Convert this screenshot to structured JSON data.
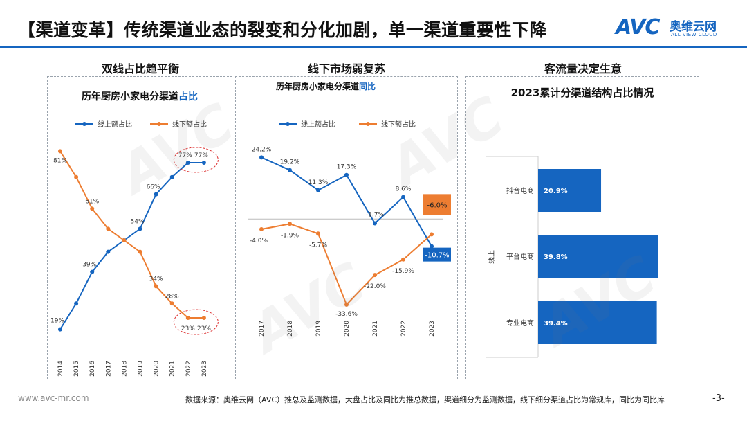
{
  "title": "【渠道变革】传统渠道业态的裂变和分化加剧，单一渠道重要性下降",
  "logo": {
    "avc": "AVC",
    "cn": "奥维云网",
    "en": "ALL VIEW CLOUD"
  },
  "sections": [
    "双线占比趋平衡",
    "线下市场弱复苏",
    "客流量决定生意"
  ],
  "colors": {
    "online": "#1565c0",
    "offline": "#ed7d31",
    "accent": "#1565c0"
  },
  "chart_data": [
    {
      "type": "line",
      "title_main": "历年厨房小家电分渠道",
      "title_accent": "占比",
      "x": [
        "2014",
        "2015",
        "2016",
        "2017",
        "2018",
        "2019",
        "2020",
        "2021",
        "2022",
        "2023"
      ],
      "series": [
        {
          "name": "线上额占比",
          "values": [
            19,
            28,
            39,
            46,
            50,
            54,
            66,
            72,
            77,
            77
          ],
          "labels": {
            "0": "19%",
            "2": "39%",
            "5": "54%",
            "6": "66%",
            "8": "77%",
            "9": "77%"
          }
        },
        {
          "name": "线下额占比",
          "values": [
            81,
            72,
            61,
            54,
            50,
            46,
            34,
            28,
            23,
            23
          ],
          "labels": {
            "0": "81%",
            "2": "61%",
            "6": "34%",
            "7": "28%",
            "8": "23%",
            "9": "23%"
          }
        }
      ],
      "ylim": [
        10,
        90
      ]
    },
    {
      "type": "line",
      "title_main": "历年厨房小家电分渠道",
      "title_accent": "同比",
      "x": [
        "2017",
        "2018",
        "2019",
        "2020",
        "2021",
        "2022",
        "2023"
      ],
      "series": [
        {
          "name": "线上额占比",
          "values": [
            24.2,
            19.2,
            11.3,
            17.3,
            -1.7,
            8.6,
            -10.7
          ],
          "labels": [
            "24.2%",
            "19.2%",
            "11.3%",
            "17.3%",
            "-1.7%",
            "8.6%",
            "-10.7%"
          ]
        },
        {
          "name": "线下额占比",
          "values": [
            -4.0,
            -1.9,
            -5.7,
            -33.6,
            -22.0,
            -15.9,
            -6.0
          ],
          "labels": [
            "-4.0%",
            "-1.9%",
            "-5.7%",
            "-33.6%",
            "-22.0%",
            "-15.9%",
            "-6.0%"
          ]
        }
      ],
      "ylim": [
        -38,
        30
      ]
    },
    {
      "type": "bar",
      "title": "2023累计分渠道结构占比情况",
      "group": "线上",
      "categories": [
        "抖音电商",
        "平台电商",
        "专业电商"
      ],
      "values": [
        20.9,
        39.8,
        39.4
      ],
      "labels": [
        "20.9%",
        "39.8%",
        "39.4%"
      ]
    }
  ],
  "footer": {
    "source": "数据来源：奥维云网（AVC）推总及监测数据，大盘占比及同比为推总数据，渠道细分为监测数据，线下细分渠道占比为常规库，同比为同比库",
    "site": "www.avc-mr.com",
    "page": "-3-"
  }
}
